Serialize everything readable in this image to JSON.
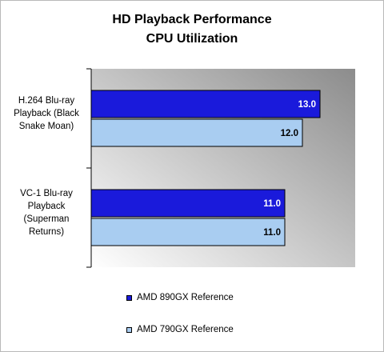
{
  "chart_data": {
    "type": "bar",
    "orientation": "horizontal",
    "title": "HD Playback Performance",
    "subtitle": "CPU Utilization",
    "categories": [
      "H.264 Blu-ray Playback (Black Snake Moan)",
      "VC-1 Blu-ray Playback (Superman Returns)"
    ],
    "series": [
      {
        "name": "AMD 890GX Reference",
        "values": [
          13.0,
          11.0
        ],
        "color": "#1a1adb"
      },
      {
        "name": "AMD 790GX Reference",
        "values": [
          12.0,
          11.0
        ],
        "color": "#a9cdf1"
      }
    ],
    "xlim": [
      0,
      15
    ],
    "grid": false,
    "legend": "bottom",
    "data_labels": true
  },
  "colors": {
    "plot_background_dark": "#8c8c8c",
    "plot_background_light": "#ffffff"
  }
}
